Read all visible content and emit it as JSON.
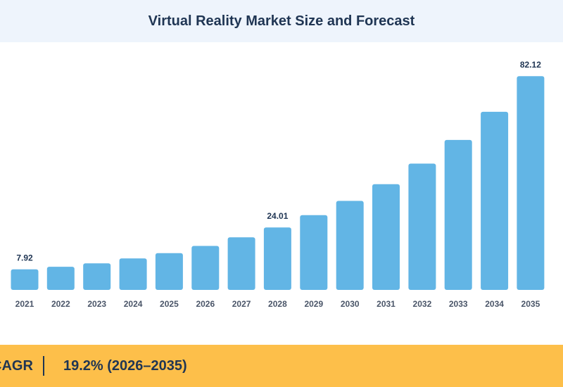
{
  "chart_data": {
    "type": "bar",
    "title": "Virtual Reality Market Size and Forecast",
    "categories": [
      "2021",
      "2022",
      "2023",
      "2024",
      "2025",
      "2026",
      "2027",
      "2028",
      "2029",
      "2030",
      "2031",
      "2032",
      "2033",
      "2034",
      "2035"
    ],
    "values": [
      7.92,
      8.9,
      10.2,
      12.1,
      14.1,
      16.9,
      20.2,
      24.01,
      28.7,
      34.2,
      40.6,
      48.5,
      57.6,
      68.4,
      82.12
    ],
    "data_labels": {
      "2021": "7.92",
      "2028": "24.01",
      "2035": "82.12"
    },
    "xlabel": "",
    "ylabel": "",
    "ylim": [
      0,
      90
    ],
    "grid": false,
    "legend": "none",
    "colors": {
      "bar": "#62b5e5",
      "text": "#1f3553",
      "tick": "#4a5568"
    }
  },
  "footer": {
    "label": "CAGR",
    "value": "19.2% (2026–2035)",
    "background": "#fdbf4a"
  }
}
